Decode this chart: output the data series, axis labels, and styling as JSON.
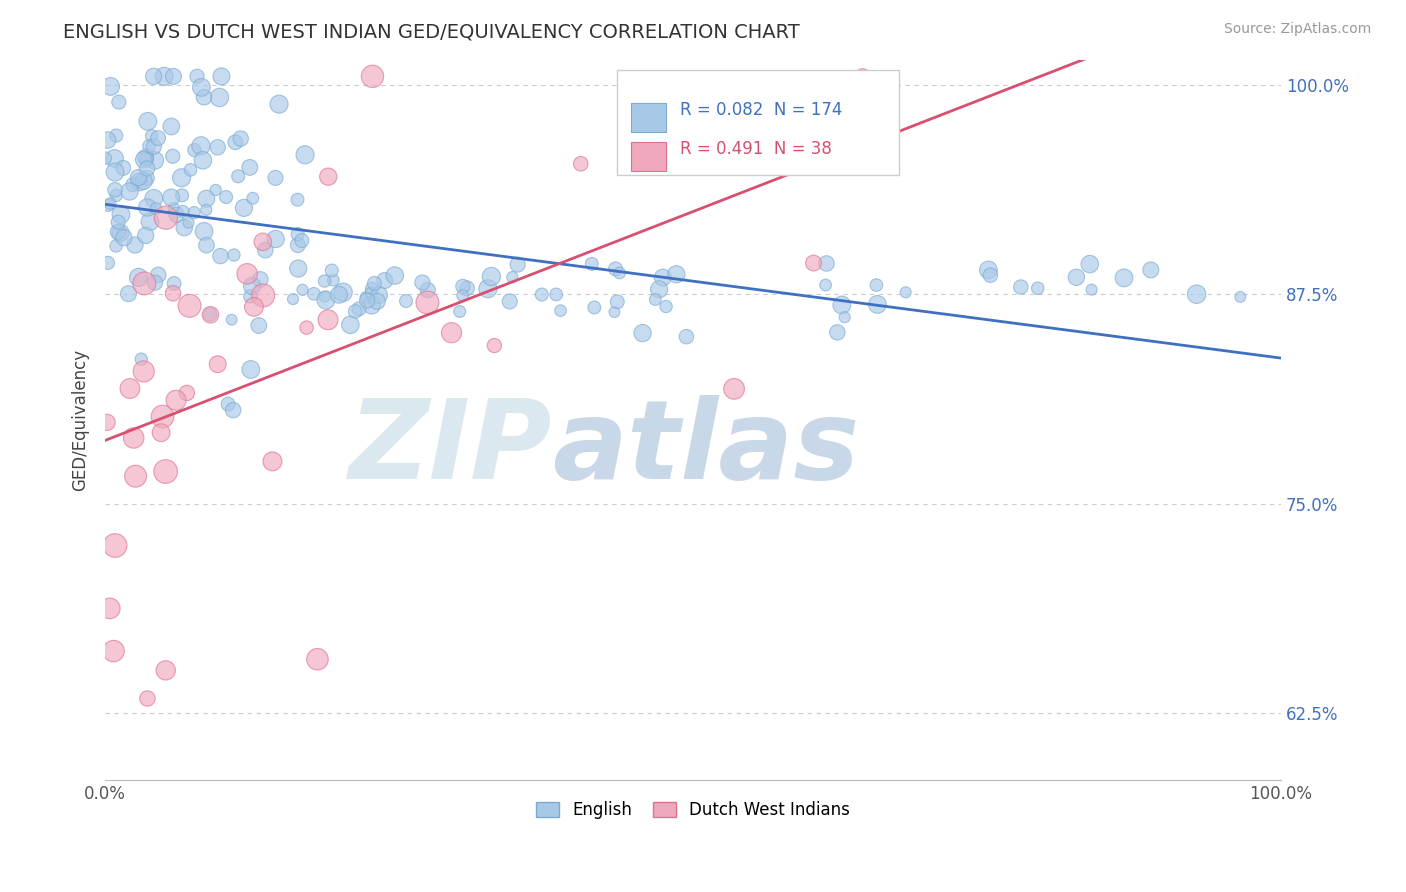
{
  "title": "ENGLISH VS DUTCH WEST INDIAN GED/EQUIVALENCY CORRELATION CHART",
  "source_text": "Source: ZipAtlas.com",
  "ylabel": "GED/Equivalency",
  "xlim": [
    0.0,
    1.0
  ],
  "ylim": [
    0.585,
    1.015
  ],
  "y_ticks": [
    0.625,
    0.75,
    0.875,
    1.0
  ],
  "y_tick_labels": [
    "62.5%",
    "75.0%",
    "87.5%",
    "100.0%"
  ],
  "english_color": "#A8C8E8",
  "dutch_color": "#F0A8BC",
  "english_edge_color": "#7AAAD0",
  "dutch_edge_color": "#E07090",
  "english_line_color": "#4070C0",
  "dutch_line_color": "#D85070",
  "english_R": 0.082,
  "english_N": 174,
  "dutch_R": 0.491,
  "dutch_N": 38,
  "background_color": "#ffffff",
  "watermark_color": "#dce8f0",
  "legend_label_english": "English",
  "legend_label_dutch": "Dutch West Indians"
}
